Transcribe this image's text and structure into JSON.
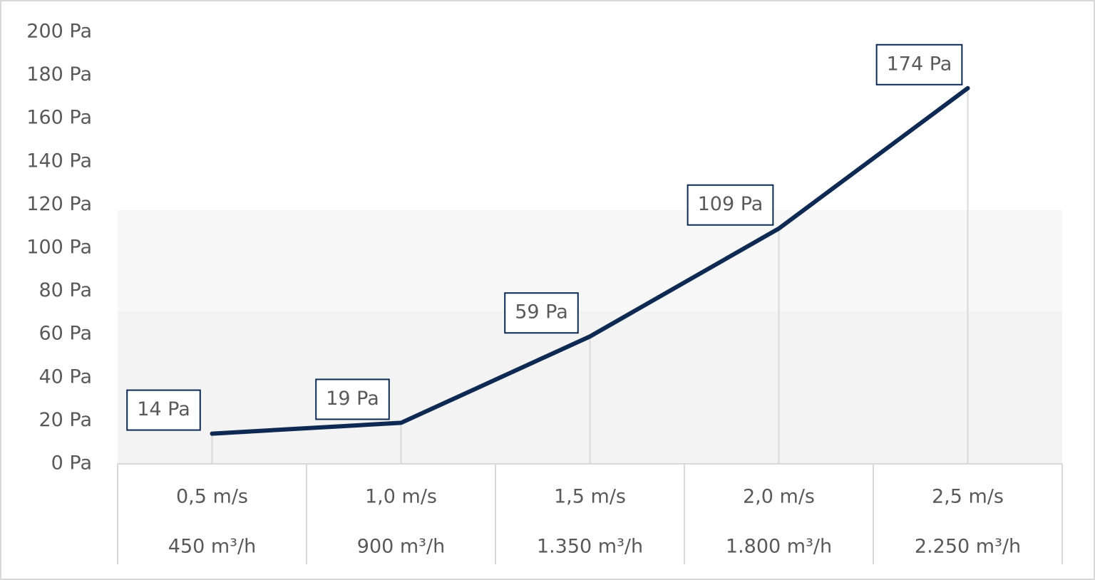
{
  "chart_data": {
    "type": "line",
    "categories": [
      [
        "0,5 m/s",
        "450 m³/h"
      ],
      [
        "1,0 m/s",
        "900 m³/h"
      ],
      [
        "1,5 m/s",
        "1.350 m³/h"
      ],
      [
        "2,0 m/s",
        "1.800 m³/h"
      ],
      [
        "2,5 m/s",
        "2.250 m³/h"
      ]
    ],
    "series": [
      {
        "color": "#0e2a52",
        "values": [
          14,
          19,
          59,
          109,
          174
        ],
        "value_labels": [
          "14 Pa",
          "19 Pa",
          "59 Pa",
          "109 Pa",
          "174 Pa"
        ]
      }
    ],
    "ylim": [
      0,
      200
    ],
    "yticks": [
      {
        "value": 0,
        "label": "0 Pa"
      },
      {
        "value": 20,
        "label": "20 Pa"
      },
      {
        "value": 40,
        "label": "40 Pa"
      },
      {
        "value": 60,
        "label": "60 Pa"
      },
      {
        "value": 80,
        "label": "80 Pa"
      },
      {
        "value": 100,
        "label": "100 Pa"
      },
      {
        "value": 120,
        "label": "120 Pa"
      },
      {
        "value": 140,
        "label": "140 Pa"
      },
      {
        "value": 160,
        "label": "160 Pa"
      },
      {
        "value": 180,
        "label": "180 Pa"
      },
      {
        "value": 200,
        "label": "200 Pa"
      }
    ],
    "grid": false
  }
}
